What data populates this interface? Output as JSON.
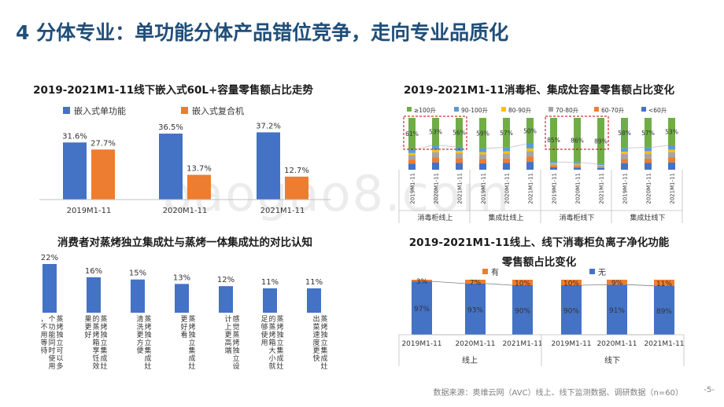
{
  "page": {
    "title": "4 分体专业：单功能分体产品错位竞争，走向专业品质化",
    "source": "数据来源：奥维云网（AVC）线上、线下监测数据、调研数据（n=60）",
    "page_number": "-5-",
    "watermark": "baogao8.com"
  },
  "colors": {
    "title": "#1f4e79",
    "blue": "#4472c4",
    "orange": "#ed7d31",
    "green": "#70ad47",
    "gray": "#a5a5a5",
    "yellow": "#ffc000",
    "lightblue": "#5b9bd5",
    "highlight": "#c00000"
  },
  "chart_data": [
    {
      "type": "bar",
      "title": "2019-2021M1-11线下嵌入式60L+容量零售额占比走势",
      "categories": [
        "2019M1-11",
        "2020M1-11",
        "2021M1-11"
      ],
      "series": [
        {
          "name": "嵌入式单功能",
          "values": [
            31.6,
            36.5,
            37.2
          ],
          "labels": [
            "31.6%",
            "36.5%",
            "37.2%"
          ]
        },
        {
          "name": "嵌入式复合机",
          "values": [
            27.7,
            13.7,
            12.7
          ],
          "labels": [
            "27.7%",
            "13.7%",
            "12.7%"
          ]
        }
      ],
      "unit": "%",
      "legend": "top",
      "grid": false
    },
    {
      "type": "bar",
      "stacked": true,
      "title": "2019-2021M1-11消毒柜、集成灶容量零售额占比变化",
      "legend_entries": [
        "≥100升",
        "90-100升",
        "80-90升",
        "70-80升",
        "60-70升",
        "<60升"
      ],
      "groups": [
        "消毒柜线上",
        "集成灶线上",
        "消毒柜线下",
        "集成灶线下"
      ],
      "x_tick_labels": [
        "2019M1-11",
        "2020M1-11",
        "2021M1-11"
      ],
      "top_segment_labels": [
        "61%",
        "53%",
        "56%",
        "59%",
        "57%",
        "50%",
        "85%",
        "86%",
        "89%",
        "58%",
        "57%",
        "53%"
      ],
      "top_segment_values": [
        61,
        53,
        56,
        59,
        57,
        50,
        85,
        86,
        89,
        58,
        57,
        53
      ],
      "highlighted_groups": [
        "消毒柜线上",
        "消毒柜线下"
      ]
    },
    {
      "type": "bar",
      "title": "消费者对蒸烤独立集成灶与蒸烤一体集成灶的对比认知",
      "categories": [
        "个功能同时使用，不用等待",
        "蒸烤独立可以多",
        "蒸烤独立集成灶的蒸烤箱享饪效果更好",
        "蒸烤独立集成灶清洗更方便",
        "蒸烤独立集成灶更好看",
        "感觉蒸烤独立设计上更高端",
        "蒸烤独立集成灶的蒸烤箱大小就足够使用"
      ],
      "category_labels": [
        "蒸烤独立可以多个功能同时使用，不用等待",
        "蒸烤独立集成灶的蒸烤箱享饪效果更好",
        "蒸烤独立集成灶清洗更方便",
        "蒸烤独立集成灶更好看",
        "感觉蒸烤独立设计上更高端",
        "蒸烤独立集成灶的蒸烤箱大小就足够使用",
        "蒸烤独立集成灶出菜速度更快"
      ],
      "values": [
        22,
        16,
        15,
        13,
        12,
        11,
        11
      ],
      "labels": [
        "22%",
        "16%",
        "15%",
        "13%",
        "12%",
        "11%",
        "11%"
      ]
    },
    {
      "type": "bar",
      "stacked": true,
      "title": "2019-2021M1-11线上、线下消毒柜负离子净化功能零售额占比变化",
      "title_line1": "2019-2021M1-11线上、线下消毒柜负离子净化功能",
      "title_line2": "零售额占比变化",
      "groups": [
        "线上",
        "线下"
      ],
      "categories": [
        "2019M1-11",
        "2020M1-11",
        "2021M1-11",
        "2019M1-11",
        "2020M1-11",
        "2021M1-11"
      ],
      "series": [
        {
          "name": "有",
          "values": [
            3,
            7,
            10,
            10,
            9,
            11
          ],
          "labels": [
            "3%",
            "7%",
            "10%",
            "10%",
            "9%",
            "11%"
          ]
        },
        {
          "name": "无",
          "values": [
            97,
            93,
            90,
            90,
            91,
            89
          ],
          "labels": [
            "97%",
            "93%",
            "90%",
            "90%",
            "91%",
            "89%"
          ]
        }
      ],
      "ylim": [
        0,
        100
      ]
    }
  ]
}
